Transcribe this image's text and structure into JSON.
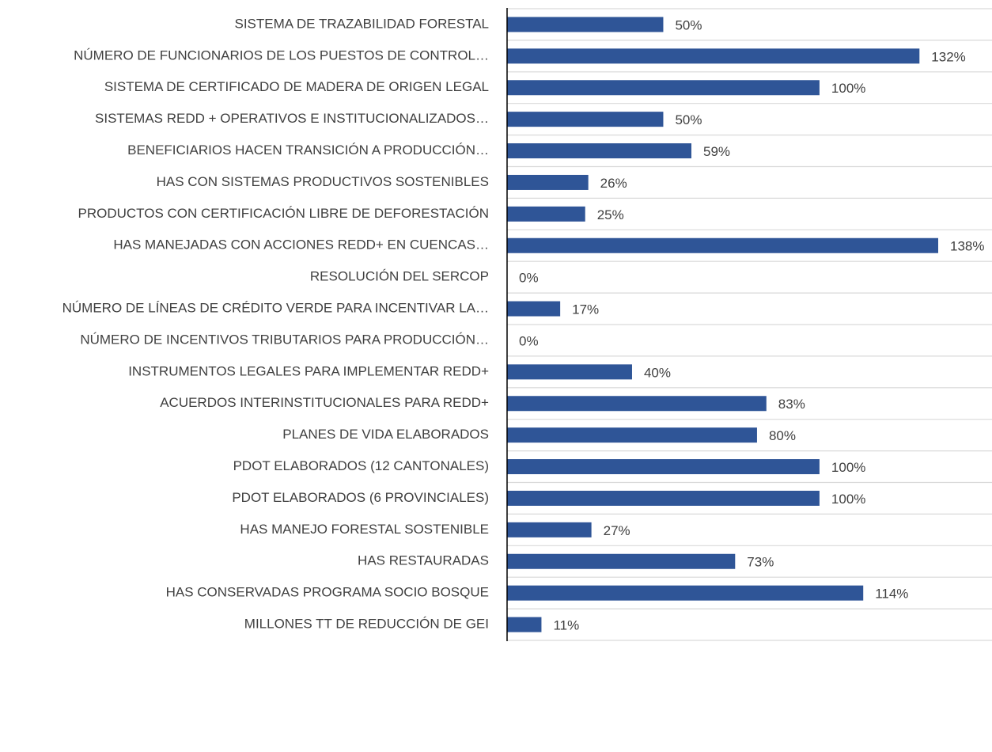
{
  "chart_data": {
    "type": "bar",
    "orientation": "horizontal",
    "color": "#2f5597",
    "categories": [
      "SISTEMA DE TRAZABILIDAD FORESTAL",
      "NÚMERO DE FUNCIONARIOS DE LOS PUESTOS DE CONTROL…",
      "SISTEMA DE CERTIFICADO DE MADERA DE ORIGEN LEGAL",
      "SISTEMAS REDD + OPERATIVOS E INSTITUCIONALIZADOS…",
      "BENEFICIARIOS HACEN TRANSICIÓN A PRODUCCIÓN…",
      "HAS CON SISTEMAS PRODUCTIVOS SOSTENIBLES",
      "PRODUCTOS CON CERTIFICACIÓN LIBRE DE DEFORESTACIÓN",
      "HAS MANEJADAS CON ACCIONES REDD+ EN CUENCAS…",
      "RESOLUCIÓN DEL SERCOP",
      "NÚMERO DE LÍNEAS DE CRÉDITO VERDE PARA INCENTIVAR LA…",
      "NÚMERO DE INCENTIVOS TRIBUTARIOS PARA PRODUCCIÓN…",
      "INSTRUMENTOS LEGALES PARA IMPLEMENTAR REDD+",
      "ACUERDOS INTERINSTITUCIONALES PARA REDD+",
      "PLANES DE VIDA ELABORADOS",
      "PDOT ELABORADOS (12 CANTONALES)",
      "PDOT ELABORADOS (6 PROVINCIALES)",
      "HAS MANEJO FORESTAL SOSTENIBLE",
      "HAS RESTAURADAS",
      "HAS CONSERVADAS PROGRAMA SOCIO BOSQUE",
      "MILLONES TT DE REDUCCIÓN DE GEI"
    ],
    "values": [
      50,
      132,
      100,
      50,
      59,
      26,
      25,
      138,
      0,
      17,
      0,
      40,
      83,
      80,
      100,
      100,
      27,
      73,
      114,
      11
    ],
    "value_labels": [
      "50%",
      "132%",
      "100%",
      "50%",
      "59%",
      "26%",
      "25%",
      "138%",
      "0%",
      "17%",
      "0%",
      "40%",
      "83%",
      "80%",
      "100%",
      "100%",
      "27%",
      "73%",
      "114%",
      "11%"
    ]
  }
}
